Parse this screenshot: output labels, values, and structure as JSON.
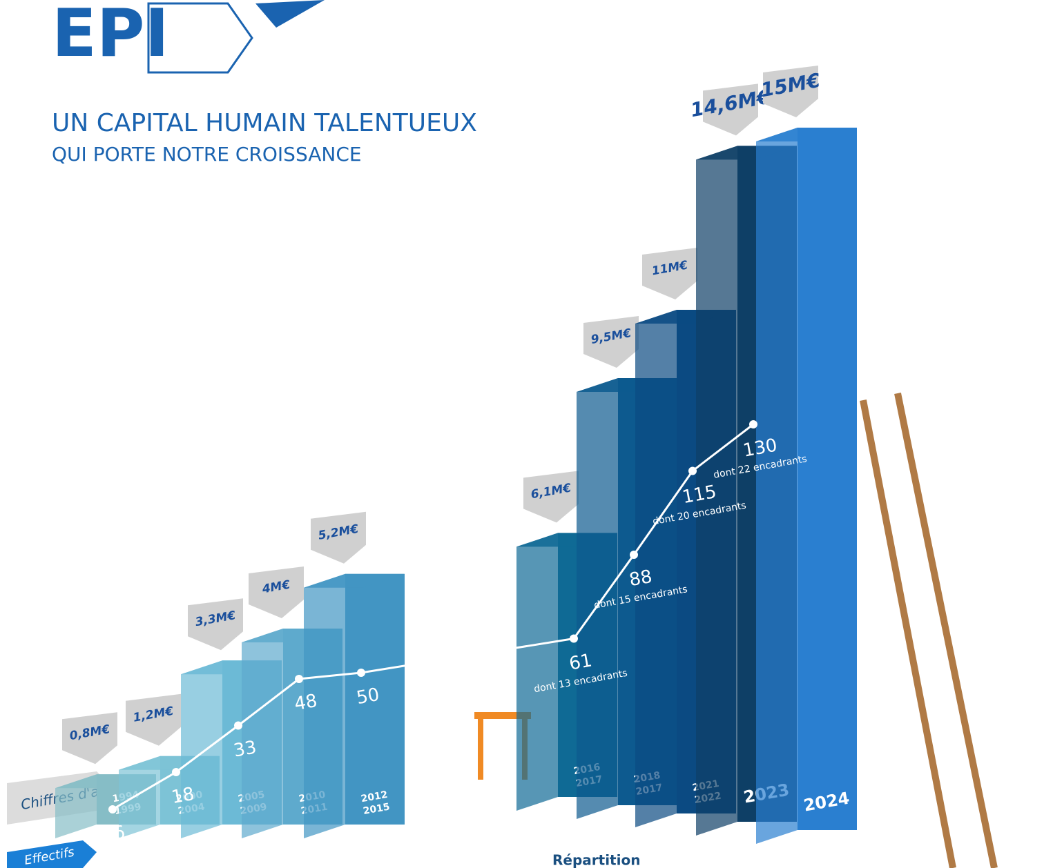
{
  "logo": "EPI",
  "chart_data": {
    "type": "bar",
    "title": "UN CAPITAL HUMAIN TALENTUEUX",
    "subtitle": "QUI PORTE NOTRE CROISSANCE",
    "revenue_label": "Chiffres d'affaires",
    "headcount_label": "Effectifs",
    "footer_label": "Répartition",
    "categories": [
      [
        "1994",
        "1999"
      ],
      [
        "2000",
        "2004"
      ],
      [
        "2005",
        "2009"
      ],
      [
        "2010",
        "2011"
      ],
      [
        "2012",
        "2015"
      ],
      [
        "2016",
        "2017"
      ],
      [
        "2018",
        "2017"
      ],
      [
        "2021",
        "2022"
      ],
      [
        "2023"
      ],
      [
        "2024"
      ]
    ],
    "series": [
      {
        "values": [
          0.8,
          1.2,
          3.3,
          4,
          5.2,
          6.1,
          9.5,
          11,
          14.6,
          15
        ],
        "value_labels": [
          "0,8M€",
          "1,2M€",
          "3,3M€",
          "4M€",
          "5,2M€",
          "6,1M€",
          "9,5M€",
          "11M€",
          "14,6M€",
          "15M€"
        ]
      },
      {
        "values": [
          6,
          18,
          33,
          48,
          50,
          61,
          88,
          115,
          130,
          null
        ],
        "notes": [
          null,
          null,
          null,
          null,
          null,
          "dont 13 encadrants",
          "dont 15 encadrants",
          "dont 20 encadrants",
          "dont 22 encadrants",
          null
        ],
        "color": "#ffffff"
      }
    ],
    "colors": [
      "#86bdc6",
      "#7dc3d6",
      "#6cbad6",
      "#5eaacd",
      "#4295c3",
      "#0f6a95",
      "#0d5a8f",
      "#0b4a82",
      "#0e3f66",
      "#2a7fd0"
    ]
  }
}
